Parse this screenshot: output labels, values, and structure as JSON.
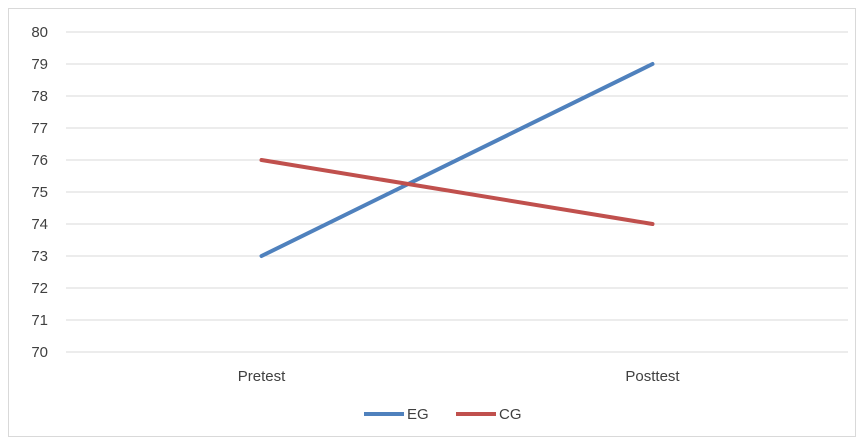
{
  "chart_data": {
    "type": "line",
    "categories": [
      "Pretest",
      "Posttest"
    ],
    "series": [
      {
        "name": "EG",
        "values": [
          73,
          79
        ],
        "color": "#4f81bd"
      },
      {
        "name": "CG",
        "values": [
          76,
          74
        ],
        "color": "#c0504d"
      }
    ],
    "title": "",
    "xlabel": "",
    "ylabel": "",
    "ylim": [
      70,
      80
    ],
    "yticks": [
      "70",
      "71",
      "72",
      "73",
      "74",
      "75",
      "76",
      "77",
      "78",
      "79",
      "80"
    ],
    "grid": true,
    "legend": "bottom"
  }
}
